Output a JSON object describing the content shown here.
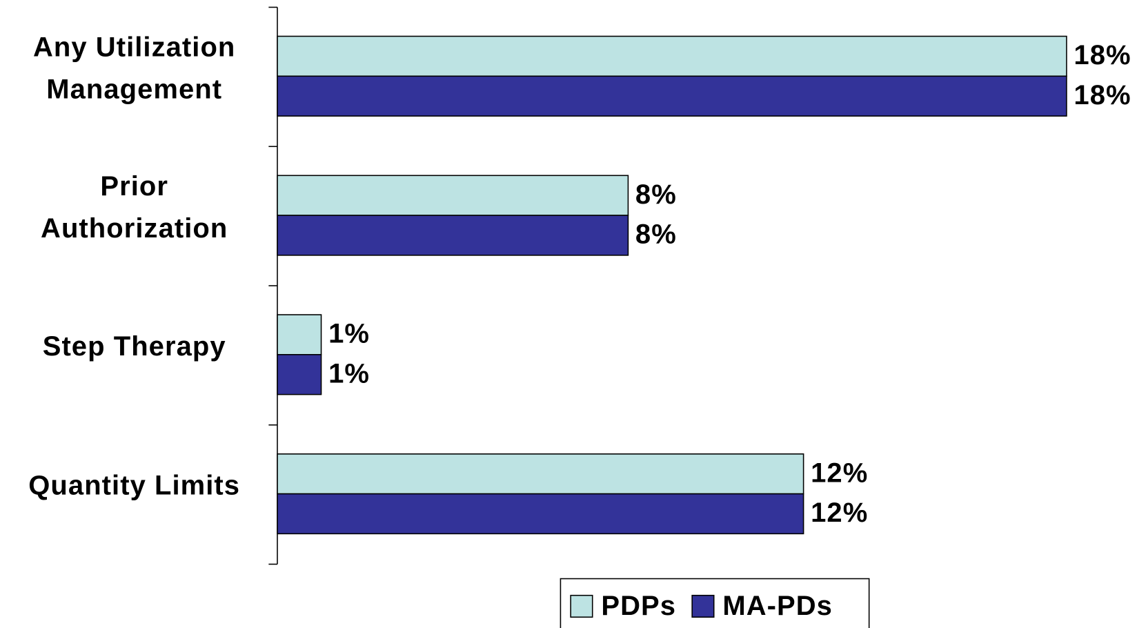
{
  "chart_data": {
    "type": "bar",
    "orientation": "horizontal",
    "categories": [
      "Any Utilization\nManagement",
      "Prior\nAuthorization",
      "Step Therapy",
      "Quantity Limits"
    ],
    "series": [
      {
        "name": "PDPs",
        "color": "#bde3e3",
        "values": [
          18,
          8,
          1,
          12
        ],
        "value_labels": [
          "18%",
          "8%",
          "1%",
          "12%"
        ]
      },
      {
        "name": "MA-PDs",
        "color": "#333399",
        "values": [
          18,
          8,
          1,
          12
        ],
        "value_labels": [
          "18%",
          "8%",
          "1%",
          "12%"
        ]
      }
    ],
    "legend": "bottom"
  }
}
